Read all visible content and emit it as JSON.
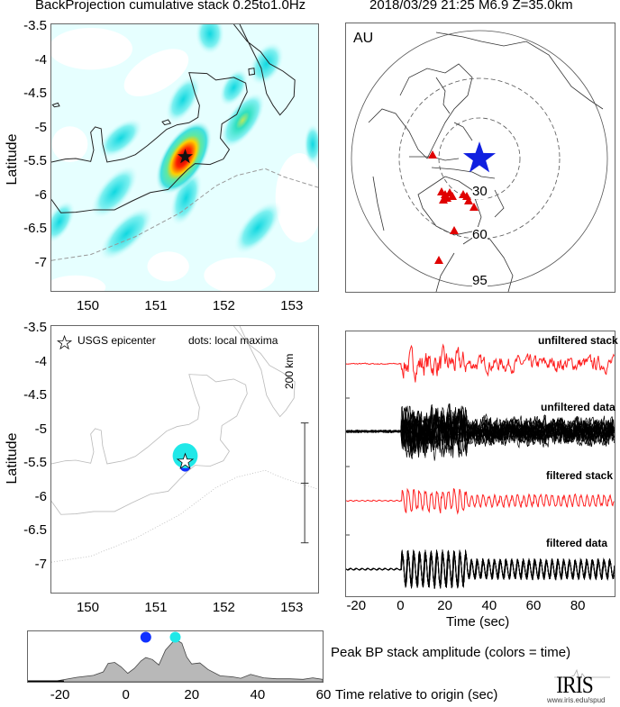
{
  "titles": {
    "left": "BackProjection cumulative stack 0.25to1.0Hz",
    "right": "2018/03/29 21:25  M6.9  Z=35.0km"
  },
  "colors": {
    "stack_trace": "#ff2020",
    "data_trace": "#000000",
    "epicenter_star_global": "#1020e0",
    "stations": "#e00000",
    "early_dot": "#1030ff",
    "late_dot": "#20e8e8",
    "amplitude_fill": "#b8b8b8"
  },
  "chart_data": [
    {
      "type": "heatmap",
      "panel": "cumulative-stack-map",
      "ylabel": "Latitude",
      "xlim": [
        149.45,
        153.4
      ],
      "ylim": [
        -7.45,
        -3.45
      ],
      "xticks": [
        "150",
        "151",
        "152",
        "153"
      ],
      "yticks": [
        "-3.5",
        "-4",
        "-4.5",
        "-5",
        "-5.5",
        "-6",
        "-6.5",
        "-7"
      ],
      "peak": {
        "lon": 151.45,
        "lat": -5.47
      },
      "epicenter": {
        "lon": 151.45,
        "lat": -5.47
      }
    },
    {
      "type": "scatter",
      "panel": "local-maxima-map",
      "ylabel": "Latitude",
      "xlim": [
        149.45,
        153.4
      ],
      "ylim": [
        -7.45,
        -3.45
      ],
      "xticks": [
        "150",
        "151",
        "152",
        "153"
      ],
      "yticks": [
        "-3.5",
        "-4",
        "-4.5",
        "-5",
        "-5.5",
        "-6",
        "-6.5",
        "-7"
      ],
      "legend_star": "USGS epicenter",
      "legend_dots": "dots: local maxima",
      "scale_bar": "200 km",
      "points": [
        {
          "lon": 151.45,
          "lat": -5.53,
          "color": "#1030ff",
          "size": "small"
        },
        {
          "lon": 151.45,
          "lat": -5.37,
          "color": "#20e8e8",
          "size": "large"
        }
      ],
      "epicenter": {
        "lon": 151.45,
        "lat": -5.47
      }
    },
    {
      "type": "scatter",
      "panel": "station-map",
      "label": "AU",
      "distance_rings": [
        "30",
        "60",
        "95"
      ],
      "epicenter_color": "#1020e0",
      "station_color": "#e00000"
    },
    {
      "type": "line",
      "panel": "waveforms",
      "xlabel": "Time (sec)",
      "xlim": [
        -25,
        97
      ],
      "xticks": [
        "-20",
        "0",
        "20",
        "40",
        "60",
        "80"
      ],
      "traces": [
        "unfiltered stack",
        "unfiltered data",
        "filtered stack",
        "filtered data"
      ]
    },
    {
      "type": "area",
      "panel": "peak-amplitude",
      "xlabel": "Time relative to origin (sec)",
      "title": "Peak BP stack amplitude (colors = time)",
      "xlim": [
        -30,
        60
      ],
      "xticks": [
        "-20",
        "0",
        "20",
        "40",
        "60"
      ],
      "x": [
        -30,
        -22,
        -15,
        -10,
        -7,
        -5.5,
        -3.5,
        -1.5,
        0.5,
        2.5,
        4.5,
        6,
        8,
        10,
        12,
        15,
        17,
        18.5,
        20,
        22.5,
        25,
        28.7,
        32.5,
        35,
        38,
        42,
        46,
        50,
        54,
        57,
        60
      ],
      "y": [
        0,
        0.01,
        0.09,
        0.13,
        0.2,
        0.37,
        0.39,
        0.3,
        0.17,
        0.27,
        0.42,
        0.49,
        0.45,
        0.34,
        0.64,
        0.86,
        0.78,
        0.5,
        0.36,
        0.38,
        0.25,
        0.12,
        0.1,
        0.07,
        0.15,
        0.08,
        0.06,
        0.06,
        0.05,
        0.08,
        0.05
      ],
      "dots": [
        {
          "x": 6,
          "color": "#1030ff"
        },
        {
          "x": 15,
          "color": "#20e8e8"
        }
      ]
    }
  ],
  "logo": {
    "text": "IRIS",
    "url_text": "www.iris.edu/spud"
  }
}
